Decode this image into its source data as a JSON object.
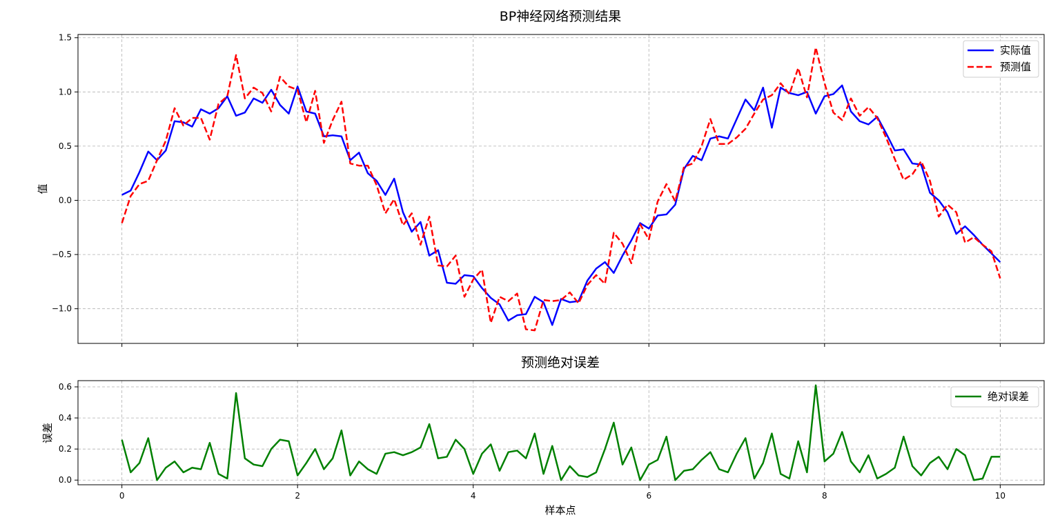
{
  "chart_data": [
    {
      "type": "line",
      "title": "BP神经网络预测结果",
      "xlabel": "",
      "ylabel": "值",
      "xlim": [
        -0.5,
        10.5
      ],
      "ylim": [
        -1.32,
        1.53
      ],
      "xticks": [
        0,
        2,
        4,
        6,
        8,
        10
      ],
      "xticklabels": [
        "",
        "",
        "",
        "",
        "",
        ""
      ],
      "yticks": [
        -1.0,
        -0.5,
        0.0,
        0.5,
        1.0,
        1.5
      ],
      "yticklabels": [
        "−1.0",
        "−0.5",
        "0.0",
        "0.5",
        "1.0",
        "1.5"
      ],
      "grid": true,
      "legend": "top-right",
      "x": {
        "start": 0,
        "end": 10,
        "count": 101
      },
      "series": [
        {
          "name": "实际值",
          "color": "#0000ff",
          "style": "solid",
          "values": [
            0.05,
            0.09,
            0.26,
            0.45,
            0.37,
            0.46,
            0.73,
            0.72,
            0.68,
            0.84,
            0.8,
            0.85,
            0.96,
            0.78,
            0.81,
            0.94,
            0.9,
            1.02,
            0.88,
            0.8,
            1.05,
            0.82,
            0.8,
            0.59,
            0.6,
            0.59,
            0.37,
            0.44,
            0.25,
            0.18,
            0.05,
            0.2,
            -0.11,
            -0.29,
            -0.2,
            -0.51,
            -0.46,
            -0.76,
            -0.77,
            -0.69,
            -0.7,
            -0.81,
            -0.9,
            -0.96,
            -1.11,
            -1.06,
            -1.05,
            -0.89,
            -0.94,
            -1.15,
            -0.91,
            -0.94,
            -0.93,
            -0.74,
            -0.63,
            -0.57,
            -0.67,
            -0.51,
            -0.37,
            -0.21,
            -0.26,
            -0.14,
            -0.13,
            -0.04,
            0.29,
            0.41,
            0.37,
            0.57,
            0.59,
            0.57,
            0.75,
            0.93,
            0.83,
            1.04,
            0.67,
            1.04,
            0.99,
            0.97,
            1.0,
            0.8,
            0.96,
            0.98,
            1.06,
            0.82,
            0.73,
            0.7,
            0.77,
            0.62,
            0.46,
            0.47,
            0.34,
            0.33,
            0.07,
            0.0,
            -0.11,
            -0.31,
            -0.24,
            -0.32,
            -0.41,
            -0.49,
            -0.57
          ]
        },
        {
          "name": "预测值",
          "color": "#ff0000",
          "style": "dashed",
          "values": [
            -0.21,
            0.04,
            0.15,
            0.18,
            0.37,
            0.55,
            0.85,
            0.69,
            0.76,
            0.76,
            0.56,
            0.89,
            0.96,
            1.34,
            0.94,
            1.04,
            0.99,
            0.82,
            1.14,
            1.05,
            1.02,
            0.72,
            1.01,
            0.53,
            0.74,
            0.91,
            0.34,
            0.32,
            0.32,
            0.14,
            -0.12,
            0.01,
            -0.23,
            -0.12,
            -0.41,
            -0.15,
            -0.6,
            -0.61,
            -0.51,
            -0.89,
            -0.73,
            -0.64,
            -1.13,
            -0.89,
            -0.93,
            -0.86,
            -1.19,
            -1.2,
            -0.92,
            -0.93,
            -0.92,
            -0.85,
            -0.95,
            -0.78,
            -0.69,
            -0.77,
            -0.3,
            -0.4,
            -0.58,
            -0.22,
            -0.36,
            -0.01,
            0.15,
            -0.01,
            0.31,
            0.34,
            0.5,
            0.75,
            0.52,
            0.52,
            0.58,
            0.66,
            0.8,
            0.93,
            0.97,
            1.08,
            0.98,
            1.22,
            0.95,
            1.41,
            1.08,
            0.81,
            0.74,
            0.94,
            0.78,
            0.86,
            0.76,
            0.58,
            0.38,
            0.19,
            0.24,
            0.36,
            0.18,
            -0.15,
            -0.04,
            -0.11,
            -0.39,
            -0.34,
            -0.41,
            -0.47,
            -0.72
          ]
        }
      ]
    },
    {
      "type": "line",
      "title": "预测绝对误差",
      "xlabel": "样本点",
      "ylabel": "误差",
      "xlim": [
        -0.5,
        10.5
      ],
      "ylim": [
        -0.03,
        0.64
      ],
      "xticks": [
        0,
        2,
        4,
        6,
        8,
        10
      ],
      "xticklabels": [
        "0",
        "2",
        "4",
        "6",
        "8",
        "10"
      ],
      "yticks": [
        0.0,
        0.2,
        0.4,
        0.6
      ],
      "yticklabels": [
        "0.0",
        "0.2",
        "0.4",
        "0.6"
      ],
      "grid": true,
      "legend": "top-right",
      "x": {
        "start": 0,
        "end": 10,
        "count": 101
      },
      "series": [
        {
          "name": "绝对误差",
          "color": "#008000",
          "style": "solid",
          "values": [
            0.26,
            0.05,
            0.11,
            0.27,
            0.0,
            0.08,
            0.12,
            0.05,
            0.08,
            0.07,
            0.24,
            0.04,
            0.01,
            0.56,
            0.14,
            0.1,
            0.09,
            0.2,
            0.26,
            0.25,
            0.03,
            0.11,
            0.2,
            0.07,
            0.14,
            0.32,
            0.03,
            0.12,
            0.07,
            0.04,
            0.17,
            0.18,
            0.16,
            0.18,
            0.21,
            0.36,
            0.14,
            0.15,
            0.26,
            0.2,
            0.04,
            0.17,
            0.23,
            0.06,
            0.18,
            0.19,
            0.14,
            0.3,
            0.04,
            0.22,
            0.0,
            0.09,
            0.03,
            0.02,
            0.05,
            0.2,
            0.37,
            0.1,
            0.21,
            0.0,
            0.1,
            0.13,
            0.28,
            0.0,
            0.06,
            0.07,
            0.13,
            0.18,
            0.07,
            0.05,
            0.17,
            0.27,
            0.01,
            0.11,
            0.3,
            0.04,
            0.01,
            0.25,
            0.05,
            0.61,
            0.12,
            0.17,
            0.31,
            0.12,
            0.05,
            0.16,
            0.01,
            0.04,
            0.08,
            0.28,
            0.09,
            0.03,
            0.11,
            0.15,
            0.07,
            0.2,
            0.16,
            0.0,
            0.01,
            0.15,
            0.15
          ]
        }
      ]
    }
  ]
}
